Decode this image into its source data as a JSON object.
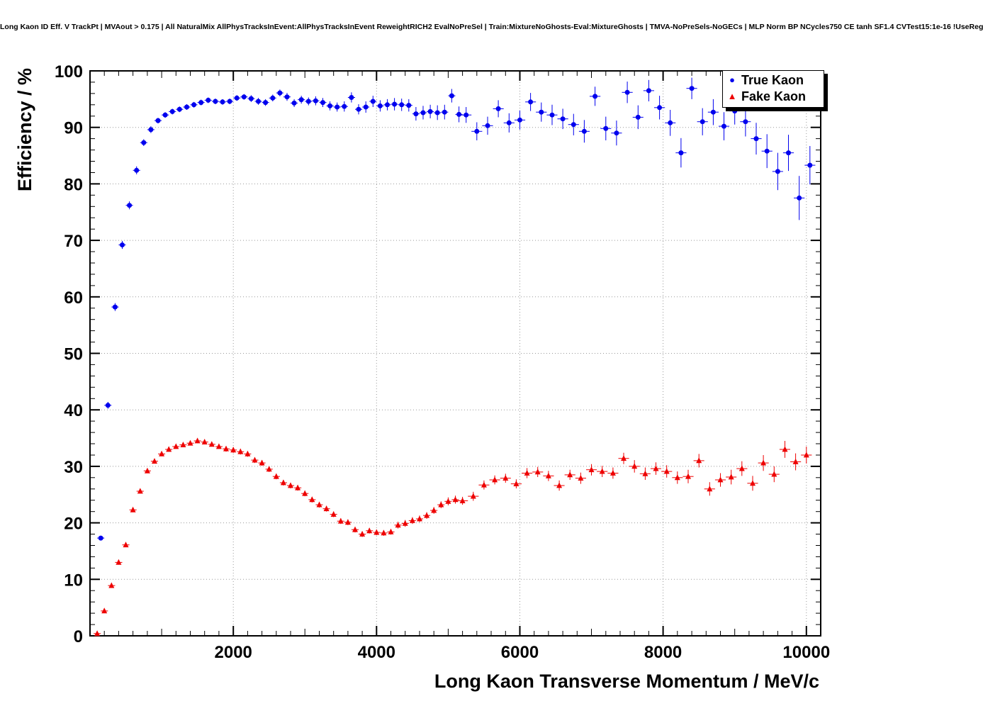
{
  "chart_data": {
    "type": "scatter",
    "title": "Long Kaon ID Eff. V TrackPt | MVAout > 0.175 | All NaturalMix AllPhysTracksInEvent:AllPhysTracksInEvent ReweightRICH2 EvalNoPreSel | Train:MixtureNoGhosts-Eval:MixtureGhosts | TMVA-NoPreSels-NoGECs | MLP Norm BP NCycles750 CE tanh SF1.4 CVTest15:1e-16 !UseReg",
    "xlabel": "Long Kaon Transverse Momentum / MeV/c",
    "ylabel": "Efficiency / %",
    "xlim": [
      0,
      10200
    ],
    "ylim": [
      0,
      100
    ],
    "x_ticks": [
      2000,
      4000,
      6000,
      8000,
      10000
    ],
    "x_minor_step": 200,
    "y_tick_step": 10,
    "y_minor_step": 2,
    "grid": true,
    "legend_position": "top-right",
    "series": [
      {
        "name": "True Kaon",
        "color": "#0000ee",
        "marker": "circle",
        "x": [
          150,
          250,
          350,
          450,
          550,
          650,
          750,
          850,
          950,
          1050,
          1150,
          1250,
          1350,
          1450,
          1550,
          1650,
          1750,
          1850,
          1950,
          2050,
          2150,
          2250,
          2350,
          2450,
          2550,
          2650,
          2750,
          2850,
          2950,
          3050,
          3150,
          3250,
          3350,
          3450,
          3550,
          3650,
          3750,
          3850,
          3950,
          4050,
          4150,
          4250,
          4350,
          4450,
          4550,
          4650,
          4750,
          4850,
          4950,
          5050,
          5150,
          5250,
          5400,
          5550,
          5700,
          5850,
          6000,
          6150,
          6300,
          6450,
          6600,
          6750,
          6900,
          7050,
          7200,
          7350,
          7500,
          7650,
          7800,
          7950,
          8100,
          8250,
          8400,
          8550,
          8700,
          8850,
          9000,
          9150,
          9300,
          9450,
          9600,
          9750,
          9900,
          10050
        ],
        "y": [
          17.3,
          40.8,
          58.2,
          69.2,
          76.2,
          82.4,
          87.3,
          89.6,
          91.2,
          92.2,
          92.8,
          93.2,
          93.6,
          94.0,
          94.4,
          94.8,
          94.6,
          94.5,
          94.6,
          95.2,
          95.4,
          95.1,
          94.6,
          94.4,
          95.2,
          96.1,
          95.4,
          94.3,
          94.9,
          94.6,
          94.7,
          94.4,
          93.8,
          93.6,
          93.7,
          95.3,
          93.2,
          93.6,
          94.6,
          93.8,
          94.0,
          94.1,
          94.0,
          93.9,
          92.4,
          92.6,
          92.8,
          92.6,
          92.7,
          95.6,
          92.3,
          92.2,
          89.3,
          90.3,
          93.3,
          90.8,
          91.3,
          94.5,
          92.7,
          92.2,
          91.5,
          90.5,
          89.3,
          95.5,
          89.8,
          89.0,
          96.2,
          91.8,
          96.5,
          93.5,
          90.8,
          85.5,
          96.9,
          91.0,
          92.7,
          90.2,
          92.9,
          91.0,
          88.0,
          85.8,
          82.2,
          85.5,
          77.5,
          83.3
        ],
        "yerr": [
          0.4,
          0.6,
          0.7,
          0.7,
          0.7,
          0.7,
          0.6,
          0.6,
          0.5,
          0.5,
          0.5,
          0.5,
          0.5,
          0.5,
          0.5,
          0.5,
          0.5,
          0.5,
          0.5,
          0.5,
          0.5,
          0.6,
          0.6,
          0.6,
          0.6,
          0.6,
          0.7,
          0.7,
          0.7,
          0.7,
          0.8,
          0.8,
          0.8,
          0.8,
          0.9,
          0.9,
          0.9,
          1.0,
          1.0,
          1.0,
          1.0,
          1.1,
          1.1,
          1.1,
          1.2,
          1.2,
          1.2,
          1.3,
          1.3,
          1.2,
          1.4,
          1.4,
          1.6,
          1.6,
          1.5,
          1.7,
          1.7,
          1.6,
          1.7,
          1.8,
          1.8,
          1.9,
          2.0,
          1.7,
          2.1,
          2.2,
          1.9,
          2.1,
          1.9,
          2.1,
          2.3,
          2.6,
          1.9,
          2.4,
          2.3,
          2.5,
          2.4,
          2.6,
          2.8,
          3.0,
          3.3,
          3.2,
          3.9,
          3.4
        ]
      },
      {
        "name": "Fake Kaon",
        "color": "#ee0000",
        "marker": "triangle",
        "x": [
          100,
          200,
          300,
          400,
          500,
          600,
          700,
          800,
          900,
          1000,
          1100,
          1200,
          1300,
          1400,
          1500,
          1600,
          1700,
          1800,
          1900,
          2000,
          2100,
          2200,
          2300,
          2400,
          2500,
          2600,
          2700,
          2800,
          2900,
          3000,
          3100,
          3200,
          3300,
          3400,
          3500,
          3600,
          3700,
          3800,
          3900,
          4000,
          4100,
          4200,
          4300,
          4400,
          4500,
          4600,
          4700,
          4800,
          4900,
          5000,
          5100,
          5200,
          5350,
          5500,
          5650,
          5800,
          5950,
          6100,
          6250,
          6400,
          6550,
          6700,
          6850,
          7000,
          7150,
          7300,
          7450,
          7600,
          7750,
          7900,
          8050,
          8200,
          8350,
          8500,
          8650,
          8800,
          8950,
          9100,
          9250,
          9400,
          9550,
          9700,
          9850,
          10000
        ],
        "y": [
          0.4,
          4.4,
          8.9,
          13.0,
          16.1,
          22.3,
          25.6,
          29.2,
          30.9,
          32.2,
          33.0,
          33.5,
          33.8,
          34.1,
          34.5,
          34.3,
          33.9,
          33.5,
          33.1,
          32.9,
          32.6,
          32.2,
          31.1,
          30.6,
          29.5,
          28.2,
          27.1,
          26.6,
          26.2,
          25.2,
          24.1,
          23.2,
          22.5,
          21.5,
          20.3,
          20.1,
          18.8,
          18.0,
          18.6,
          18.3,
          18.2,
          18.4,
          19.6,
          19.9,
          20.4,
          20.7,
          21.3,
          22.2,
          23.2,
          23.8,
          24.1,
          23.9,
          24.7,
          26.7,
          27.6,
          27.9,
          26.9,
          28.8,
          29.0,
          28.3,
          26.6,
          28.5,
          27.9,
          29.4,
          29.1,
          28.8,
          31.4,
          30.0,
          28.7,
          29.6,
          29.1,
          28.0,
          28.2,
          31.0,
          26.0,
          27.6,
          28.1,
          29.6,
          27.0,
          30.6,
          28.6,
          33.0,
          30.8,
          32.0
        ],
        "yerr": [
          0.2,
          0.3,
          0.4,
          0.4,
          0.4,
          0.4,
          0.4,
          0.4,
          0.4,
          0.4,
          0.4,
          0.4,
          0.4,
          0.4,
          0.4,
          0.4,
          0.4,
          0.4,
          0.5,
          0.5,
          0.5,
          0.5,
          0.5,
          0.5,
          0.5,
          0.5,
          0.5,
          0.5,
          0.5,
          0.5,
          0.5,
          0.5,
          0.5,
          0.5,
          0.5,
          0.5,
          0.5,
          0.5,
          0.5,
          0.5,
          0.5,
          0.5,
          0.6,
          0.6,
          0.6,
          0.6,
          0.6,
          0.6,
          0.6,
          0.7,
          0.7,
          0.7,
          0.8,
          0.8,
          0.8,
          0.8,
          0.8,
          0.9,
          0.9,
          0.9,
          0.9,
          0.9,
          1.0,
          1.0,
          1.0,
          1.0,
          1.0,
          1.1,
          1.1,
          1.1,
          1.1,
          1.1,
          1.2,
          1.2,
          1.2,
          1.2,
          1.3,
          1.3,
          1.3,
          1.4,
          1.4,
          1.5,
          1.5,
          1.5
        ]
      }
    ]
  }
}
